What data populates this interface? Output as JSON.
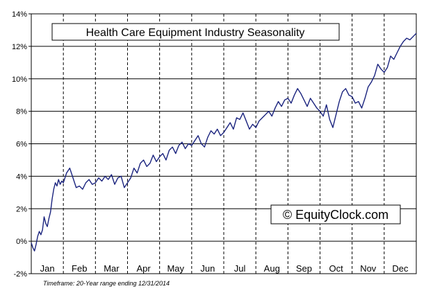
{
  "chart_data": {
    "type": "line",
    "title": "Health Care Equipment Industry Seasonality",
    "watermark": "© EquityClock.com",
    "footnote": "Timeframe: 20-Year range ending 12/31/2014",
    "yticks": [
      "-2%",
      "0%",
      "2%",
      "4%",
      "6%",
      "8%",
      "10%",
      "12%",
      "14%"
    ],
    "ylim": [
      -2,
      14
    ],
    "xlim": [
      0,
      12
    ],
    "months": [
      "Jan",
      "Feb",
      "Mar",
      "Apr",
      "May",
      "Jun",
      "Jul",
      "Aug",
      "Sep",
      "Oct",
      "Nov",
      "Dec"
    ],
    "grid": true,
    "line_color": "#1a237e",
    "series": [
      {
        "x": [
          0.0,
          0.05,
          0.1,
          0.15,
          0.2,
          0.25,
          0.3,
          0.35,
          0.4,
          0.45,
          0.5,
          0.55,
          0.6,
          0.65,
          0.7,
          0.75,
          0.8,
          0.85,
          0.9,
          0.95,
          1.0,
          1.1,
          1.2,
          1.3,
          1.4,
          1.5,
          1.6,
          1.7,
          1.8,
          1.9,
          2.0,
          2.1,
          2.2,
          2.3,
          2.4,
          2.5,
          2.6,
          2.7,
          2.8,
          2.9,
          3.0,
          3.1,
          3.2,
          3.3,
          3.4,
          3.5,
          3.6,
          3.7,
          3.8,
          3.9,
          4.0,
          4.1,
          4.2,
          4.3,
          4.4,
          4.5,
          4.6,
          4.7,
          4.8,
          4.9,
          5.0,
          5.1,
          5.2,
          5.3,
          5.4,
          5.5,
          5.6,
          5.7,
          5.8,
          5.9,
          6.0,
          6.1,
          6.2,
          6.3,
          6.4,
          6.5,
          6.6,
          6.7,
          6.8,
          6.9,
          7.0,
          7.1,
          7.2,
          7.3,
          7.4,
          7.5,
          7.6,
          7.7,
          7.8,
          7.9,
          8.0,
          8.1,
          8.2,
          8.3,
          8.4,
          8.5,
          8.6,
          8.7,
          8.8,
          8.9,
          9.0,
          9.1,
          9.2,
          9.3,
          9.4,
          9.5,
          9.6,
          9.7,
          9.8,
          9.9,
          10.0,
          10.1,
          10.2,
          10.3,
          10.4,
          10.5,
          10.6,
          10.7,
          10.8,
          10.9,
          11.0,
          11.1,
          11.2,
          11.3,
          11.4,
          11.5,
          11.6,
          11.7,
          11.8,
          11.9,
          12.0
        ],
        "y": [
          -0.1,
          -0.4,
          -0.6,
          -0.2,
          0.3,
          0.6,
          0.4,
          0.7,
          1.5,
          1.1,
          0.9,
          1.4,
          1.8,
          2.6,
          3.2,
          3.6,
          3.4,
          3.8,
          3.5,
          3.7,
          3.6,
          4.2,
          4.5,
          3.9,
          3.3,
          3.4,
          3.2,
          3.6,
          3.8,
          3.5,
          3.6,
          3.9,
          3.7,
          4.0,
          3.8,
          4.1,
          3.5,
          3.9,
          4.0,
          3.3,
          3.6,
          3.9,
          4.5,
          4.2,
          4.8,
          5.0,
          4.6,
          4.8,
          5.3,
          4.9,
          5.2,
          5.4,
          5.0,
          5.6,
          5.8,
          5.4,
          5.9,
          6.1,
          5.7,
          6.0,
          5.9,
          6.2,
          6.5,
          6.0,
          5.8,
          6.4,
          6.8,
          6.6,
          6.9,
          6.5,
          6.7,
          7.0,
          7.3,
          6.9,
          7.6,
          7.5,
          7.9,
          7.4,
          6.9,
          7.2,
          7.0,
          7.4,
          7.6,
          7.8,
          8.0,
          7.7,
          8.2,
          8.6,
          8.3,
          8.7,
          8.8,
          8.5,
          9.0,
          9.4,
          9.1,
          8.7,
          8.3,
          8.8,
          8.5,
          8.2,
          8.0,
          7.7,
          8.4,
          7.5,
          7.0,
          7.8,
          8.6,
          9.2,
          9.4,
          9.0,
          8.9,
          8.5,
          8.6,
          8.2,
          8.8,
          9.5,
          9.8,
          10.2,
          10.9,
          10.6,
          10.4,
          10.7,
          11.4,
          11.2,
          11.6,
          12.0,
          12.3,
          12.5,
          12.4,
          12.6,
          12.8
        ]
      }
    ]
  }
}
